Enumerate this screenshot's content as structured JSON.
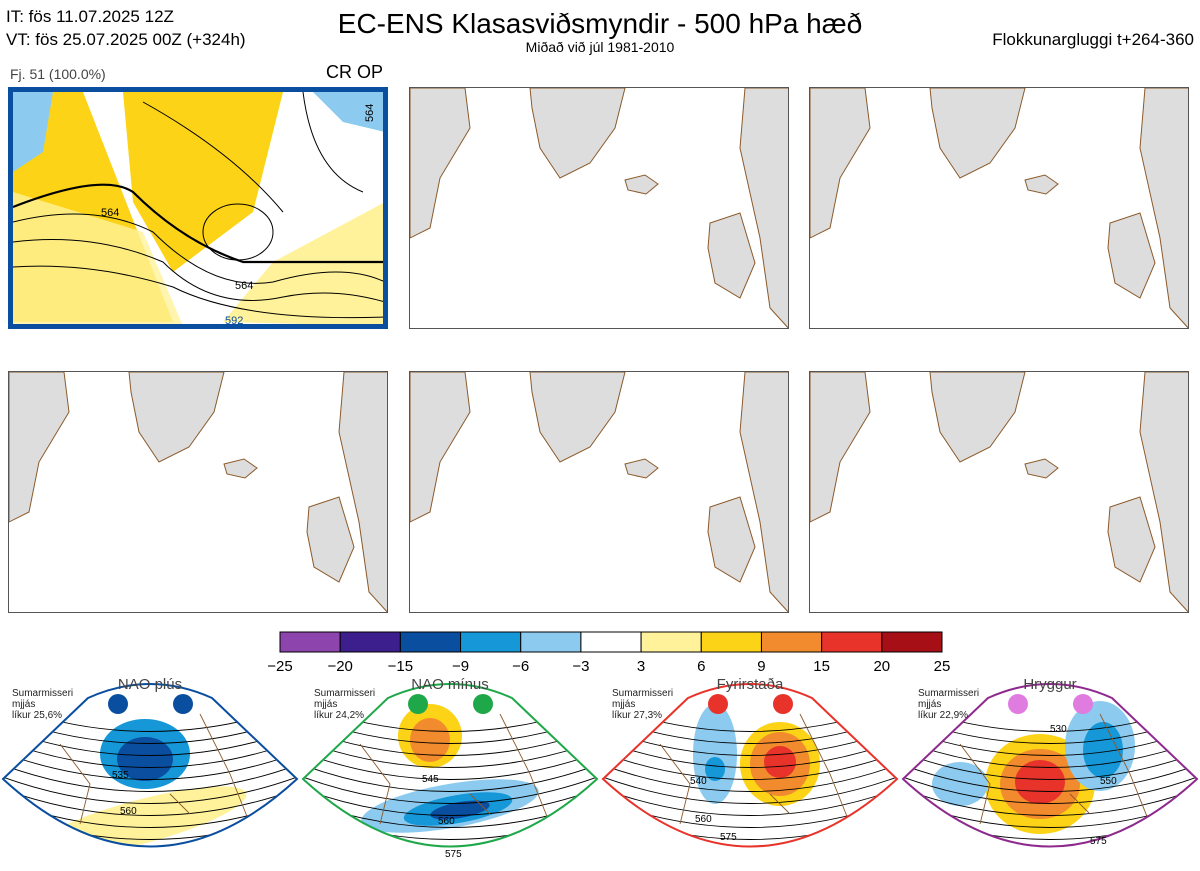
{
  "header": {
    "it": "IT: fös 11.07.2025 12Z",
    "vt": "VT: fös 25.07.2025 00Z  (+324h)",
    "title": "EC-ENS Klasasviðsmyndir - 500 hPa hæð",
    "subtitle": "Miðað við júl 1981-2010",
    "window": "Flokkunargluggi t+264-360"
  },
  "panel": {
    "label": "Fj. 51 (100.0%)",
    "tag": "CR OP",
    "contour_labels": [
      "564",
      "564",
      "564",
      "592"
    ]
  },
  "colors": {
    "frame": "#0a4ea0",
    "land": "#dddddd",
    "coast": "#8b5a2b"
  },
  "chart_data": {
    "type": "colorbar",
    "bounds": [
      -25,
      -20,
      -15,
      -9,
      -6,
      -3,
      3,
      6,
      9,
      15,
      20,
      25
    ],
    "colors": [
      "#8e44ad",
      "#3c1f8c",
      "#0a4ea0",
      "#1597d8",
      "#8ccbef",
      "#ffffff",
      "#fff29a",
      "#fcd316",
      "#f28b2d",
      "#e8332a",
      "#a50f15"
    ]
  },
  "regimes": [
    {
      "name": "NAO plús",
      "season": "Sumarmisseri",
      "smoothing": "mjjás",
      "prob": "líkur 25,6%",
      "dot_color": "#0a4ea0",
      "frame_color": "#0a4ea0",
      "labels": [
        "535",
        "560"
      ]
    },
    {
      "name": "NAO mínus",
      "season": "Sumarmisseri",
      "smoothing": "mjjás",
      "prob": "líkur 24,2%",
      "dot_color": "#1fa84a",
      "frame_color": "#1fa84a",
      "labels": [
        "545",
        "560",
        "575"
      ]
    },
    {
      "name": "Fyrirstaða",
      "season": "Sumarmisseri",
      "smoothing": "mjjás",
      "prob": "líkur 27,3%",
      "dot_color": "#e8332a",
      "frame_color": "#e8332a",
      "labels": [
        "540",
        "560",
        "575"
      ]
    },
    {
      "name": "Hryggur",
      "season": "Sumarmisseri",
      "smoothing": "mjjás",
      "prob": "líkur 22,9%",
      "dot_color": "#e07be0",
      "frame_color": "#8e2a8e",
      "labels": [
        "530",
        "550",
        "575"
      ]
    }
  ]
}
